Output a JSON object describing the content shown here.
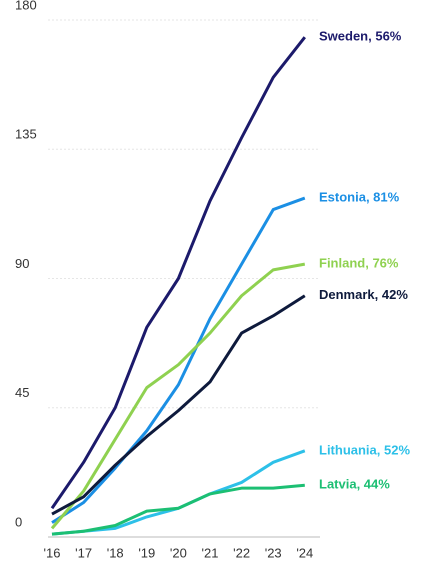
{
  "chart_data": {
    "type": "line",
    "categories": [
      "'16",
      "'17",
      "'18",
      "'19",
      "'20",
      "'21",
      "'22",
      "'23",
      "'24"
    ],
    "series": [
      {
        "name": "Sweden, 56%",
        "color": "#1c1a6b",
        "values": [
          10,
          26,
          45,
          73,
          90,
          117,
          139,
          160,
          174
        ]
      },
      {
        "name": "Estonia, 81%",
        "color": "#1b8fe4",
        "values": [
          5,
          12,
          24,
          37,
          53,
          76,
          95,
          114,
          118
        ]
      },
      {
        "name": "Finland, 76%",
        "color": "#8fd150",
        "values": [
          3,
          16,
          34,
          52,
          60,
          71,
          84,
          93,
          95
        ]
      },
      {
        "name": "Denmark, 42%",
        "color": "#0e1a3c",
        "values": [
          8,
          14,
          25,
          35,
          44,
          54,
          71,
          77,
          84
        ]
      },
      {
        "name": "Lithuania, 52%",
        "color": "#2dc0e8",
        "values": [
          1,
          2,
          3,
          7,
          10,
          15,
          19,
          26,
          30
        ]
      },
      {
        "name": "Latvia, 44%",
        "color": "#1cbf73",
        "values": [
          1,
          2,
          4,
          9,
          10,
          15,
          17,
          17,
          18
        ]
      }
    ],
    "ylim": [
      0,
      180
    ],
    "yticks": [
      0,
      45,
      90,
      135,
      180
    ],
    "grid": true
  }
}
